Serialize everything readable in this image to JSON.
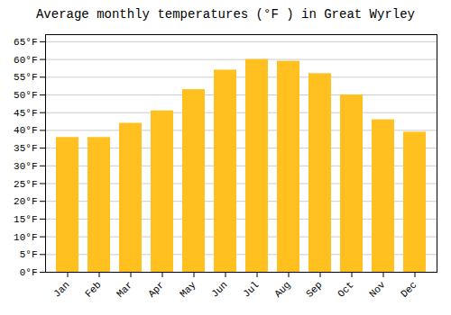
{
  "chart_data": {
    "type": "bar",
    "title": "Average monthly temperatures (°F ) in Great Wyrley",
    "categories": [
      "Jan",
      "Feb",
      "Mar",
      "Apr",
      "May",
      "Jun",
      "Jul",
      "Aug",
      "Sep",
      "Oct",
      "Nov",
      "Dec"
    ],
    "values": [
      38,
      38,
      42,
      45.5,
      51.5,
      57,
      60,
      59.5,
      56,
      50,
      43,
      39.5
    ],
    "color": "#FFC020",
    "ylim": [
      0,
      67
    ],
    "yticks": [
      {
        "value": 0,
        "label": "0°F"
      },
      {
        "value": 5,
        "label": "5°F"
      },
      {
        "value": 10,
        "label": "10°F"
      },
      {
        "value": 15,
        "label": "15°F"
      },
      {
        "value": 20,
        "label": "20°F"
      },
      {
        "value": 25,
        "label": "25°F"
      },
      {
        "value": 30,
        "label": "30°F"
      },
      {
        "value": 35,
        "label": "35°F"
      },
      {
        "value": 40,
        "label": "40°F"
      },
      {
        "value": 45,
        "label": "45°F"
      },
      {
        "value": 50,
        "label": "50°F"
      },
      {
        "value": 55,
        "label": "55°F"
      },
      {
        "value": 60,
        "label": "60°F"
      },
      {
        "value": 65,
        "label": "65°F"
      }
    ],
    "grid": true
  }
}
